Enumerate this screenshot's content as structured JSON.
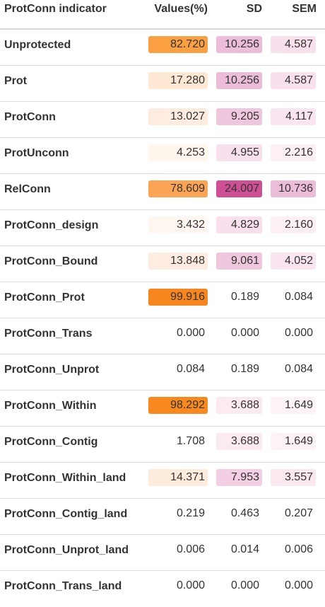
{
  "headers": {
    "indicator": "ProtConn indicator",
    "values": "Values(%)",
    "sd": "SD",
    "sem": "SEM"
  },
  "colors": {
    "values_scale": [
      "#fff6ec",
      "#fde8d4",
      "#fba25a",
      "#f98c24",
      "#f7821a"
    ],
    "sd_scale": [
      "#fdf0f5",
      "#f5d5e6",
      "#ebbdd7",
      "#cf4f95"
    ],
    "sem_scale": [
      "#fdf0f5",
      "#f8e0ec",
      "#ebbdd7"
    ]
  },
  "rows": [
    {
      "name": "Unprotected",
      "value": "82.720",
      "sd": "10.256",
      "sem": "4.587",
      "value_bg": "#fba042",
      "sd_bg": "#ebbdd8",
      "sem_bg": "#f8e0ec"
    },
    {
      "name": "Prot",
      "value": "17.280",
      "sd": "10.256",
      "sem": "4.587",
      "value_bg": "#fde8d4",
      "sd_bg": "#ebbdd8",
      "sem_bg": "#f8e0ec"
    },
    {
      "name": "ProtConn",
      "value": "13.027",
      "sd": "9.205",
      "sem": "4.117",
      "value_bg": "#feece0",
      "sd_bg": "#efc7dd",
      "sem_bg": "#f9e4ef"
    },
    {
      "name": "ProtUnconn",
      "value": "4.253",
      "sd": "4.955",
      "sem": "2.216",
      "value_bg": "#fff6ee",
      "sd_bg": "#f8e1ed",
      "sem_bg": "#fcf0f5"
    },
    {
      "name": "RelConn",
      "value": "78.609",
      "sd": "24.007",
      "sem": "10.736",
      "value_bg": "#fba456",
      "sd_bg": "#cf4f95",
      "sem_bg": "#ebbdd8"
    },
    {
      "name": "ProtConn_design",
      "value": "3.432",
      "sd": "4.829",
      "sem": "2.160",
      "value_bg": "#fff7f0",
      "sd_bg": "#f8e1ed",
      "sem_bg": "#fcf0f5"
    },
    {
      "name": "ProtConn_Bound",
      "value": "13.848",
      "sd": "9.061",
      "sem": "4.052",
      "value_bg": "#feece0",
      "sd_bg": "#efc7dd",
      "sem_bg": "#f9e4ef"
    },
    {
      "name": "ProtConn_Prot",
      "value": "99.916",
      "sd": "0.189",
      "sem": "0.084",
      "value_bg": "#f8861e",
      "sd_bg": "#ffffff",
      "sem_bg": "#ffffff"
    },
    {
      "name": "ProtConn_Trans",
      "value": "0.000",
      "sd": "0.000",
      "sem": "0.000",
      "value_bg": "#ffffff",
      "sd_bg": "#ffffff",
      "sem_bg": "#ffffff"
    },
    {
      "name": "ProtConn_Unprot",
      "value": "0.084",
      "sd": "0.189",
      "sem": "0.084",
      "value_bg": "#ffffff",
      "sd_bg": "#ffffff",
      "sem_bg": "#ffffff"
    },
    {
      "name": "ProtConn_Within",
      "value": "98.292",
      "sd": "3.688",
      "sem": "1.649",
      "value_bg": "#f8891f",
      "sd_bg": "#fbeaf2",
      "sem_bg": "#fdf3f7"
    },
    {
      "name": "ProtConn_Contig",
      "value": "1.708",
      "sd": "3.688",
      "sem": "1.649",
      "value_bg": "#ffffff",
      "sd_bg": "#fbeaf2",
      "sem_bg": "#fdf3f7"
    },
    {
      "name": "ProtConn_Within_land",
      "value": "14.371",
      "sd": "7.953",
      "sem": "3.557",
      "value_bg": "#fdebdb",
      "sd_bg": "#f2cfe2",
      "sem_bg": "#fae7f0"
    },
    {
      "name": "ProtConn_Contig_land",
      "value": "0.219",
      "sd": "0.463",
      "sem": "0.207",
      "value_bg": "#ffffff",
      "sd_bg": "#ffffff",
      "sem_bg": "#ffffff"
    },
    {
      "name": "ProtConn_Unprot_land",
      "value": "0.006",
      "sd": "0.014",
      "sem": "0.006",
      "value_bg": "#ffffff",
      "sd_bg": "#ffffff",
      "sem_bg": "#ffffff"
    },
    {
      "name": "ProtConn_Trans_land",
      "value": "0.000",
      "sd": "0.000",
      "sem": "0.000",
      "value_bg": "#ffffff",
      "sd_bg": "#ffffff",
      "sem_bg": "#ffffff"
    }
  ]
}
